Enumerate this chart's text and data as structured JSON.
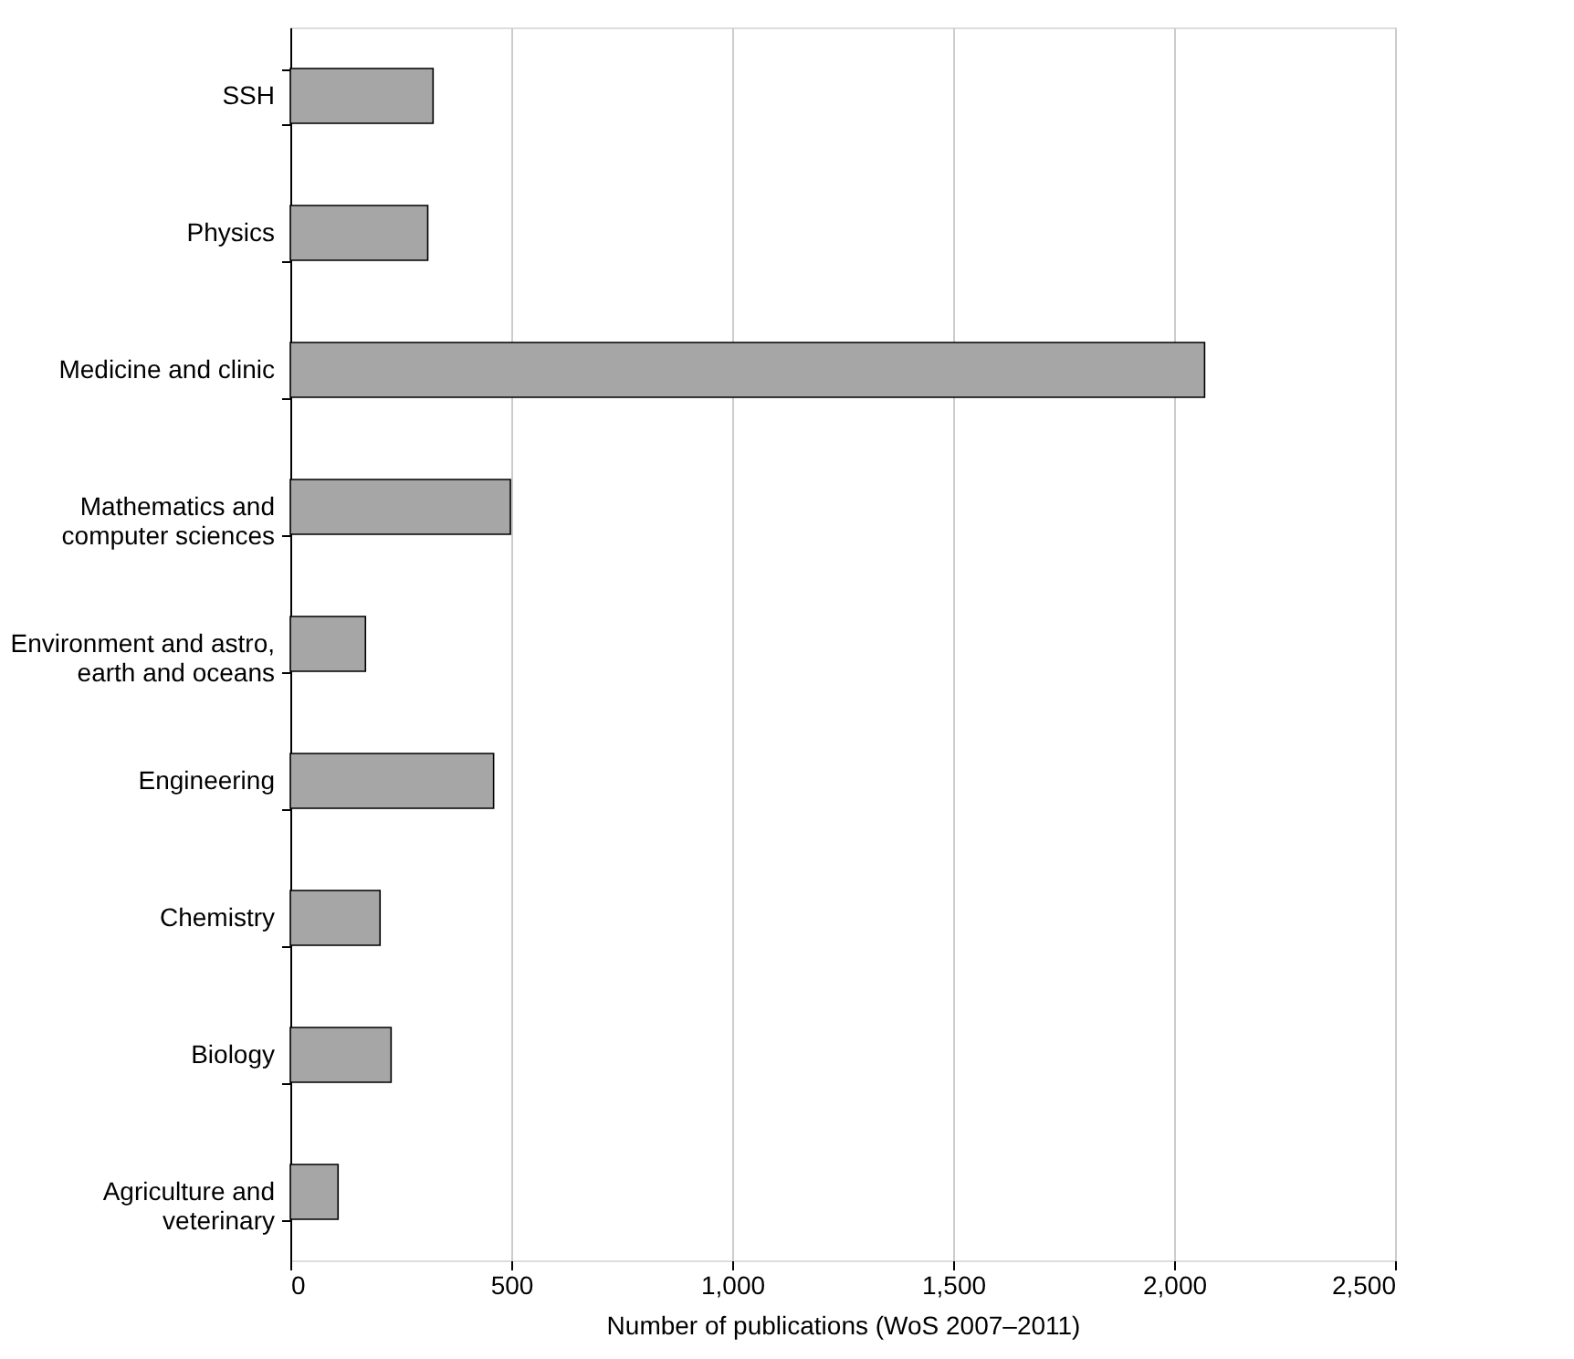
{
  "chart_data": {
    "type": "bar",
    "orientation": "horizontal",
    "xlabel": "Number of publications (WoS 2007–2011)",
    "categories": [
      "SSH",
      "Physics",
      "Medicine and clinic",
      "Mathematics and\ncomputer sciences",
      "Environment and astro,\nearth and oceans",
      "Engineering",
      "Chemistry",
      "Biology",
      "Agriculture and\nveterinary"
    ],
    "values": [
      323,
      311,
      2069,
      498,
      170,
      460,
      203,
      228,
      108
    ],
    "color": "#a6a6a6",
    "xlim": [
      0,
      2500
    ],
    "xticks": [
      0,
      500,
      {
        "value": 1000,
        "label": "1,000"
      },
      {
        "value": 1500,
        "label": "1,500"
      },
      {
        "value": 2000,
        "label": "2,000"
      },
      {
        "value": 2500,
        "label": "2,500"
      }
    ],
    "grid": "x"
  }
}
